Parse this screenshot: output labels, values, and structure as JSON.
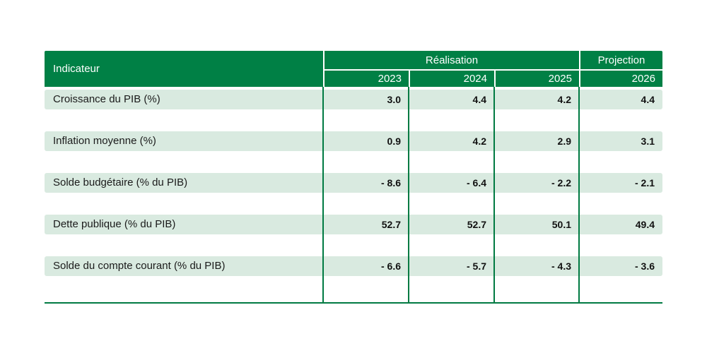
{
  "chart_data": {
    "type": "table",
    "title": "",
    "header": {
      "indicator": "Indicateur",
      "group_realisation": "Réalisation",
      "group_projection": "Projection",
      "realisation_years": [
        "2023",
        "2024",
        "2025"
      ],
      "projection_years": [
        "2026"
      ],
      "years": [
        "2023",
        "2024",
        "2025",
        "2026"
      ]
    },
    "rows": [
      {
        "label": "Croissance du PIB (%)",
        "values": [
          "3.0",
          "4.4",
          "4.2",
          "4.4"
        ]
      },
      {
        "label": "Inflation moyenne (%)",
        "values": [
          "0.9",
          "4.2",
          "2.9",
          "3.1"
        ]
      },
      {
        "label": "Solde budgétaire (% du PIB)",
        "values": [
          "- 8.6",
          "- 6.4",
          "- 2.2",
          "- 2.1"
        ]
      },
      {
        "label": "Dette publique (% du PIB)",
        "values": [
          "52.7",
          "52.7",
          "50.1",
          "49.4"
        ]
      },
      {
        "label": "Solde du compte courant (% du PIB)",
        "values": [
          "- 6.6",
          "- 5.7",
          "- 4.3",
          "- 3.6"
        ]
      }
    ],
    "layout": {
      "legend_position": "none",
      "grid": "vertical-column-separators-and-bottom-rule"
    }
  },
  "colors": {
    "header_green": "#008045",
    "band_light_green": "#d9eae0",
    "grid_line_green": "#007a42",
    "header_text": "#ffffff",
    "body_text": "#111111",
    "background": "#ffffff"
  }
}
